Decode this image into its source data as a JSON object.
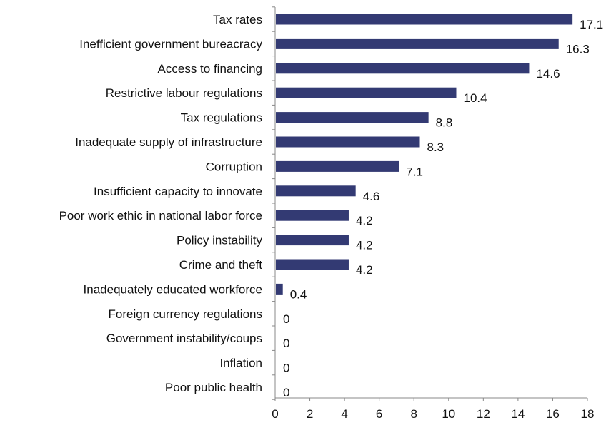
{
  "chart_data": {
    "type": "bar",
    "orientation": "horizontal",
    "categories": [
      "Tax rates",
      "Inefficient government bureacracy",
      "Access to financing",
      "Restrictive labour regulations",
      "Tax regulations",
      "Inadequate supply of infrastructure",
      "Corruption",
      "Insufficient capacity to innovate",
      "Poor work ethic in national labor force",
      "Policy instability",
      "Crime and theft",
      "Inadequately educated workforce",
      "Foreign currency regulations",
      "Government instability/coups",
      "Inflation",
      "Poor public health"
    ],
    "values": [
      17.1,
      16.3,
      14.6,
      10.4,
      8.8,
      8.3,
      7.1,
      4.6,
      4.2,
      4.2,
      4.2,
      0.4,
      0,
      0,
      0,
      0
    ],
    "value_labels": [
      "17.1",
      "16.3",
      "14.6",
      "10.4",
      "8.8",
      "8.3",
      "7.1",
      "4.6",
      "4.2",
      "4.2",
      "4.2",
      "0.4",
      "0",
      "0",
      "0",
      "0"
    ],
    "xlim": [
      0,
      18
    ],
    "xticks": [
      0,
      2,
      4,
      6,
      8,
      10,
      12,
      14,
      16,
      18
    ],
    "bar_color": "#333a73",
    "axis_color": "#888888",
    "grid": false,
    "legend": "none"
  }
}
